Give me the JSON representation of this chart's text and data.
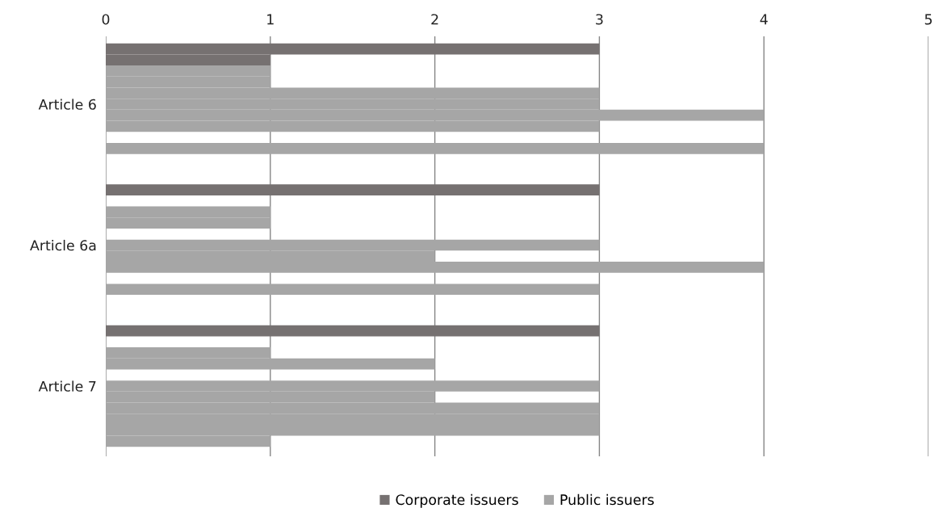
{
  "chart_data": {
    "type": "bar",
    "orientation": "horizontal",
    "categories": [
      "Article 6",
      "Article 6a",
      "Article 7"
    ],
    "series": [
      {
        "name": "Corporate issuers",
        "color": "#767171",
        "values": [
          3,
          3,
          3
        ]
      },
      {
        "color": "#767171",
        "values": [
          1,
          null,
          null
        ]
      },
      {
        "name": "Public issuers",
        "color": "#a6a6a6",
        "values": [
          1,
          1,
          1
        ]
      },
      {
        "color": "#a6a6a6",
        "values": [
          1,
          1,
          2
        ]
      },
      {
        "color": "#a6a6a6",
        "values": [
          3,
          null,
          null
        ]
      },
      {
        "color": "#a6a6a6",
        "values": [
          3,
          3,
          3
        ]
      },
      {
        "color": "#a6a6a6",
        "values": [
          4,
          2,
          2
        ]
      },
      {
        "color": "#a6a6a6",
        "values": [
          3,
          4,
          3
        ]
      },
      {
        "color": "#a6a6a6",
        "values": [
          null,
          null,
          3
        ]
      },
      {
        "color": "#a6a6a6",
        "values": [
          4,
          3,
          3
        ]
      },
      {
        "color": "#a6a6a6",
        "values": [
          null,
          null,
          1
        ]
      }
    ],
    "xlim": [
      0,
      5
    ],
    "xticks": [
      0,
      1,
      2,
      3,
      4,
      5
    ],
    "grid": "x",
    "legend": "bottom"
  }
}
